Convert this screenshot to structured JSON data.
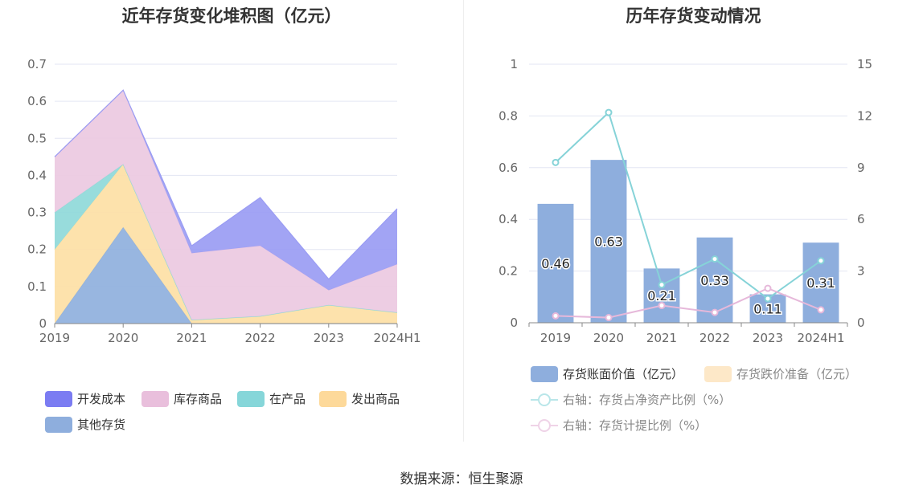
{
  "left_chart": {
    "title": "近年存货变化堆积图（亿元）",
    "legend": [
      "开发成本",
      "库存商品",
      "在产品",
      "发出商品",
      "其他存货"
    ]
  },
  "right_chart": {
    "title": "历年存货变动情况",
    "legend": [
      "存货账面价值（亿元）",
      "存货跌价准备（亿元）",
      "右轴：存货占净资产比例（%）",
      "右轴：存货计提比例（%）"
    ]
  },
  "footer": {
    "source": "数据来源：恒生聚源"
  },
  "chart_data": [
    {
      "type": "area",
      "stacked": true,
      "title": "近年存货变化堆积图（亿元）",
      "categories": [
        "2019",
        "2020",
        "2021",
        "2022",
        "2023",
        "2024H1"
      ],
      "ylim": [
        0,
        0.7
      ],
      "yticks": [
        "0",
        "0.1",
        "0.2",
        "0.3",
        "0.4",
        "0.5",
        "0.6",
        "0.7"
      ],
      "grid": true,
      "legend_position": "bottom",
      "series": [
        {
          "name": "其他存货",
          "color": "#8fb0dd",
          "values": [
            0,
            0.26,
            0,
            0,
            0,
            0
          ]
        },
        {
          "name": "发出商品",
          "color": "#fde0a5",
          "values": [
            0.2,
            0.17,
            0.01,
            0.02,
            0.05,
            0.03
          ]
        },
        {
          "name": "在产品",
          "color": "#8fd9d9",
          "values": [
            0.1,
            0,
            0,
            0,
            0,
            0
          ]
        },
        {
          "name": "库存商品",
          "color": "#ecc9e1",
          "values": [
            0.15,
            0.2,
            0.18,
            0.19,
            0.04,
            0.13
          ]
        },
        {
          "name": "开发成本",
          "color": "#9a9cf3",
          "values": [
            0,
            0,
            0.02,
            0.13,
            0.03,
            0.15
          ]
        }
      ]
    },
    {
      "type": "bar",
      "title": "历年存货变动情况",
      "categories": [
        "2019",
        "2020",
        "2021",
        "2022",
        "2023",
        "2024H1"
      ],
      "ylim": [
        0,
        1
      ],
      "yticks": [
        "0",
        "0.2",
        "0.4",
        "0.6",
        "0.8",
        "1"
      ],
      "y2lim": [
        0,
        15
      ],
      "y2ticks": [
        "0",
        "3",
        "6",
        "9",
        "12",
        "15"
      ],
      "grid": true,
      "legend_position": "bottom",
      "bar_color": "#8eaedd",
      "series": [
        {
          "name": "存货账面价值（亿元）",
          "kind": "bar",
          "axis": "left",
          "color": "#8eaedd",
          "values": [
            0.46,
            0.63,
            0.21,
            0.33,
            0.11,
            0.31
          ],
          "labels": [
            "0.46",
            "0.63",
            "0.21",
            "0.33",
            "0.11",
            "0.31"
          ]
        },
        {
          "name": "存货跌价准备（亿元）",
          "kind": "bar",
          "axis": "left",
          "color": "#fde8c8",
          "values": [
            0,
            0,
            0,
            0,
            0,
            0
          ]
        },
        {
          "name": "右轴：存货占净资产比例（%）",
          "kind": "line",
          "axis": "right",
          "color": "#86d3d8",
          "values": [
            9.3,
            12.2,
            2.2,
            3.7,
            1.4,
            3.6
          ]
        },
        {
          "name": "右轴：存货计提比例（%）",
          "kind": "line",
          "axis": "right",
          "color": "#e6b8da",
          "values": [
            0.4,
            0.3,
            1.0,
            0.6,
            2.0,
            0.75
          ]
        }
      ]
    }
  ]
}
